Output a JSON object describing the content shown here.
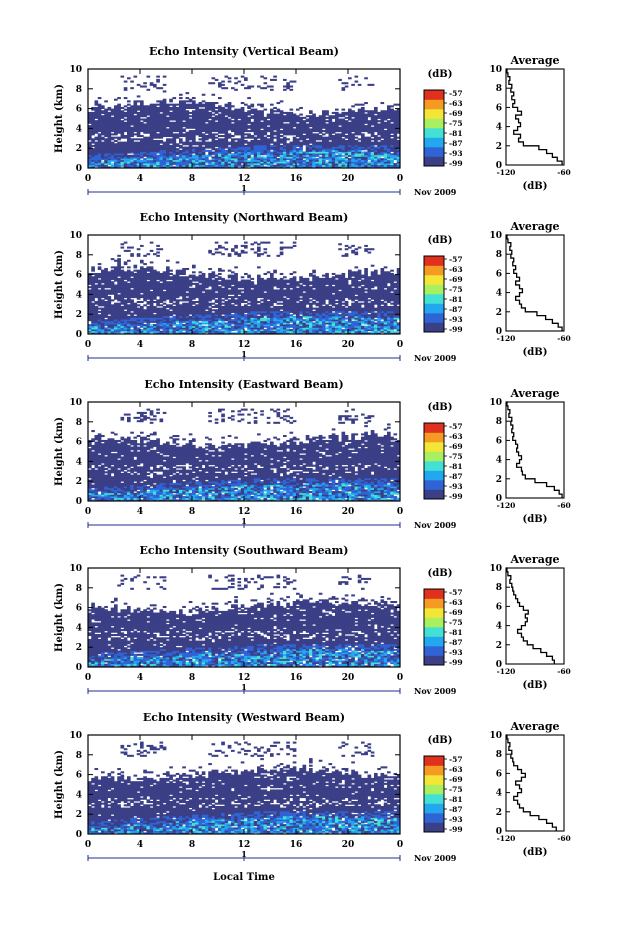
{
  "figure": {
    "bottom_xlabel": "Local Time"
  },
  "chart_data": [
    {
      "type": "heatmap",
      "title": "Echo Intensity (Vertical Beam)",
      "ylabel": "Height (km)",
      "xlim": [
        0,
        24
      ],
      "ylim": [
        0,
        10
      ],
      "x_ticks": [
        "0",
        "4",
        "8",
        "12",
        "16",
        "20",
        "0"
      ],
      "y_ticks": [
        "0",
        "2",
        "4",
        "6",
        "8",
        "10"
      ],
      "date_marker": "1",
      "date_label": "Nov 2009",
      "colorbar": {
        "unit_label": "(dB)",
        "ticks": [
          "-57",
          "-63",
          "-69",
          "-75",
          "-81",
          "-87",
          "-93",
          "-99"
        ],
        "colors_low_to_high": [
          "#3b3f86",
          "#2f63d6",
          "#23a8f0",
          "#42e0d5",
          "#a8f060",
          "#f4e636",
          "#f59a23",
          "#e0301e"
        ]
      },
      "profile": {
        "title": "Average",
        "xlabel": "(dB)",
        "x_ticks": [
          "-120",
          "-60"
        ],
        "xlim": [
          -120,
          -60
        ],
        "height_km": [
          0,
          0.4,
          0.8,
          1.2,
          1.6,
          2.0,
          2.4,
          2.8,
          3.2,
          3.6,
          4.0,
          4.4,
          4.8,
          5.2,
          5.6,
          6.0,
          6.4,
          6.8,
          7.2,
          7.6,
          8.0,
          8.4,
          8.8,
          9.2,
          9.6,
          10.0
        ],
        "values_db": [
          -62,
          -67,
          -72,
          -78,
          -86,
          -102,
          -107,
          -105,
          -112,
          -108,
          -105,
          -107,
          -110,
          -104,
          -108,
          -113,
          -111,
          -114,
          -112,
          -115,
          -114,
          -117,
          -116,
          -118,
          -119,
          -120
        ]
      }
    },
    {
      "type": "heatmap",
      "title": "Echo Intensity (Northward Beam)",
      "ylabel": "Height (km)",
      "xlim": [
        0,
        24
      ],
      "ylim": [
        0,
        10
      ],
      "x_ticks": [
        "0",
        "4",
        "8",
        "12",
        "16",
        "20",
        "0"
      ],
      "y_ticks": [
        "0",
        "2",
        "4",
        "6",
        "8",
        "10"
      ],
      "date_marker": "1",
      "date_label": "Nov 2009",
      "colorbar": {
        "unit_label": "(dB)",
        "ticks": [
          "-57",
          "-63",
          "-69",
          "-75",
          "-81",
          "-87",
          "-93",
          "-99"
        ],
        "colors_low_to_high": [
          "#3b3f86",
          "#2f63d6",
          "#23a8f0",
          "#42e0d5",
          "#a8f060",
          "#f4e636",
          "#f59a23",
          "#e0301e"
        ]
      },
      "profile": {
        "title": "Average",
        "xlabel": "(dB)",
        "x_ticks": [
          "-120",
          "-60"
        ],
        "xlim": [
          -120,
          -60
        ],
        "height_km": [
          0,
          0.4,
          0.8,
          1.2,
          1.6,
          2.0,
          2.4,
          2.8,
          3.2,
          3.6,
          4.0,
          4.4,
          4.8,
          5.2,
          5.6,
          6.0,
          6.4,
          6.8,
          7.2,
          7.6,
          8.0,
          8.4,
          8.8,
          9.2,
          9.6,
          10.0
        ],
        "values_db": [
          -62,
          -66,
          -72,
          -79,
          -88,
          -100,
          -104,
          -106,
          -110,
          -106,
          -103,
          -106,
          -110,
          -106,
          -109,
          -112,
          -110,
          -113,
          -112,
          -115,
          -114,
          -116,
          -115,
          -118,
          -119,
          -120
        ]
      }
    },
    {
      "type": "heatmap",
      "title": "Echo Intensity (Eastward Beam)",
      "ylabel": "Height (km)",
      "xlim": [
        0,
        24
      ],
      "ylim": [
        0,
        10
      ],
      "x_ticks": [
        "0",
        "4",
        "8",
        "12",
        "16",
        "20",
        "0"
      ],
      "y_ticks": [
        "0",
        "2",
        "4",
        "6",
        "8",
        "10"
      ],
      "date_marker": "1",
      "date_label": "Nov 2009",
      "colorbar": {
        "unit_label": "(dB)",
        "ticks": [
          "-57",
          "-63",
          "-69",
          "-75",
          "-81",
          "-87",
          "-93",
          "-99"
        ],
        "colors_low_to_high": [
          "#3b3f86",
          "#2f63d6",
          "#23a8f0",
          "#42e0d5",
          "#a8f060",
          "#f4e636",
          "#f59a23",
          "#e0301e"
        ]
      },
      "profile": {
        "title": "Average",
        "xlabel": "(dB)",
        "x_ticks": [
          "-120",
          "-60"
        ],
        "xlim": [
          -120,
          -60
        ],
        "height_km": [
          0,
          0.4,
          0.8,
          1.2,
          1.6,
          2.0,
          2.4,
          2.8,
          3.2,
          3.6,
          4.0,
          4.4,
          4.8,
          5.2,
          5.6,
          6.0,
          6.4,
          6.8,
          7.2,
          7.6,
          8.0,
          8.4,
          8.8,
          9.2,
          9.6,
          10.0
        ],
        "values_db": [
          -62,
          -65,
          -70,
          -78,
          -90,
          -100,
          -103,
          -104,
          -109,
          -106,
          -104,
          -107,
          -109,
          -108,
          -110,
          -113,
          -112,
          -114,
          -113,
          -115,
          -114,
          -117,
          -116,
          -118,
          -119,
          -120
        ]
      }
    },
    {
      "type": "heatmap",
      "title": "Echo Intensity (Southward Beam)",
      "ylabel": "Height (km)",
      "xlim": [
        0,
        24
      ],
      "ylim": [
        0,
        10
      ],
      "x_ticks": [
        "0",
        "4",
        "8",
        "12",
        "16",
        "20",
        "0"
      ],
      "y_ticks": [
        "0",
        "2",
        "4",
        "6",
        "8",
        "10"
      ],
      "date_marker": "1",
      "date_label": "Nov 2009",
      "colorbar": {
        "unit_label": "(dB)",
        "ticks": [
          "-57",
          "-63",
          "-69",
          "-75",
          "-81",
          "-87",
          "-93",
          "-99"
        ],
        "colors_low_to_high": [
          "#3b3f86",
          "#2f63d6",
          "#23a8f0",
          "#42e0d5",
          "#a8f060",
          "#f4e636",
          "#f59a23",
          "#e0301e"
        ]
      },
      "profile": {
        "title": "Average",
        "xlabel": "(dB)",
        "x_ticks": [
          "-120",
          "-60"
        ],
        "xlim": [
          -120,
          -60
        ],
        "height_km": [
          0,
          0.4,
          0.8,
          1.2,
          1.6,
          2.0,
          2.4,
          2.8,
          3.2,
          3.6,
          4.0,
          4.4,
          4.8,
          5.2,
          5.6,
          6.0,
          6.4,
          6.8,
          7.2,
          7.6,
          8.0,
          8.4,
          8.8,
          9.2,
          9.6,
          10.0
        ],
        "values_db": [
          -70,
          -72,
          -78,
          -84,
          -92,
          -98,
          -102,
          -104,
          -108,
          -104,
          -100,
          -98,
          -100,
          -97,
          -102,
          -106,
          -108,
          -110,
          -112,
          -113,
          -114,
          -116,
          -115,
          -118,
          -119,
          -120
        ]
      }
    },
    {
      "type": "heatmap",
      "title": "Echo Intensity (Westward Beam)",
      "ylabel": "Height (km)",
      "xlim": [
        0,
        24
      ],
      "ylim": [
        0,
        10
      ],
      "x_ticks": [
        "0",
        "4",
        "8",
        "12",
        "16",
        "20",
        "0"
      ],
      "y_ticks": [
        "0",
        "2",
        "4",
        "6",
        "8",
        "10"
      ],
      "date_marker": "1",
      "date_label": "Nov 2009",
      "colorbar": {
        "unit_label": "(dB)",
        "ticks": [
          "-57",
          "-63",
          "-69",
          "-75",
          "-81",
          "-87",
          "-93",
          "-99"
        ],
        "colors_low_to_high": [
          "#3b3f86",
          "#2f63d6",
          "#23a8f0",
          "#42e0d5",
          "#a8f060",
          "#f4e636",
          "#f59a23",
          "#e0301e"
        ]
      },
      "profile": {
        "title": "Average",
        "xlabel": "(dB)",
        "x_ticks": [
          "-120",
          "-60"
        ],
        "xlim": [
          -120,
          -60
        ],
        "height_km": [
          0,
          0.4,
          0.8,
          1.2,
          1.6,
          2.0,
          2.4,
          2.8,
          3.2,
          3.6,
          4.0,
          4.4,
          4.8,
          5.2,
          5.6,
          6.0,
          6.4,
          6.8,
          7.2,
          7.6,
          8.0,
          8.4,
          8.8,
          9.2,
          9.6,
          10.0
        ],
        "values_db": [
          -68,
          -72,
          -78,
          -86,
          -95,
          -102,
          -106,
          -108,
          -112,
          -108,
          -104,
          -106,
          -110,
          -104,
          -100,
          -104,
          -108,
          -112,
          -113,
          -115,
          -114,
          -117,
          -116,
          -118,
          -119,
          -120
        ]
      }
    }
  ]
}
